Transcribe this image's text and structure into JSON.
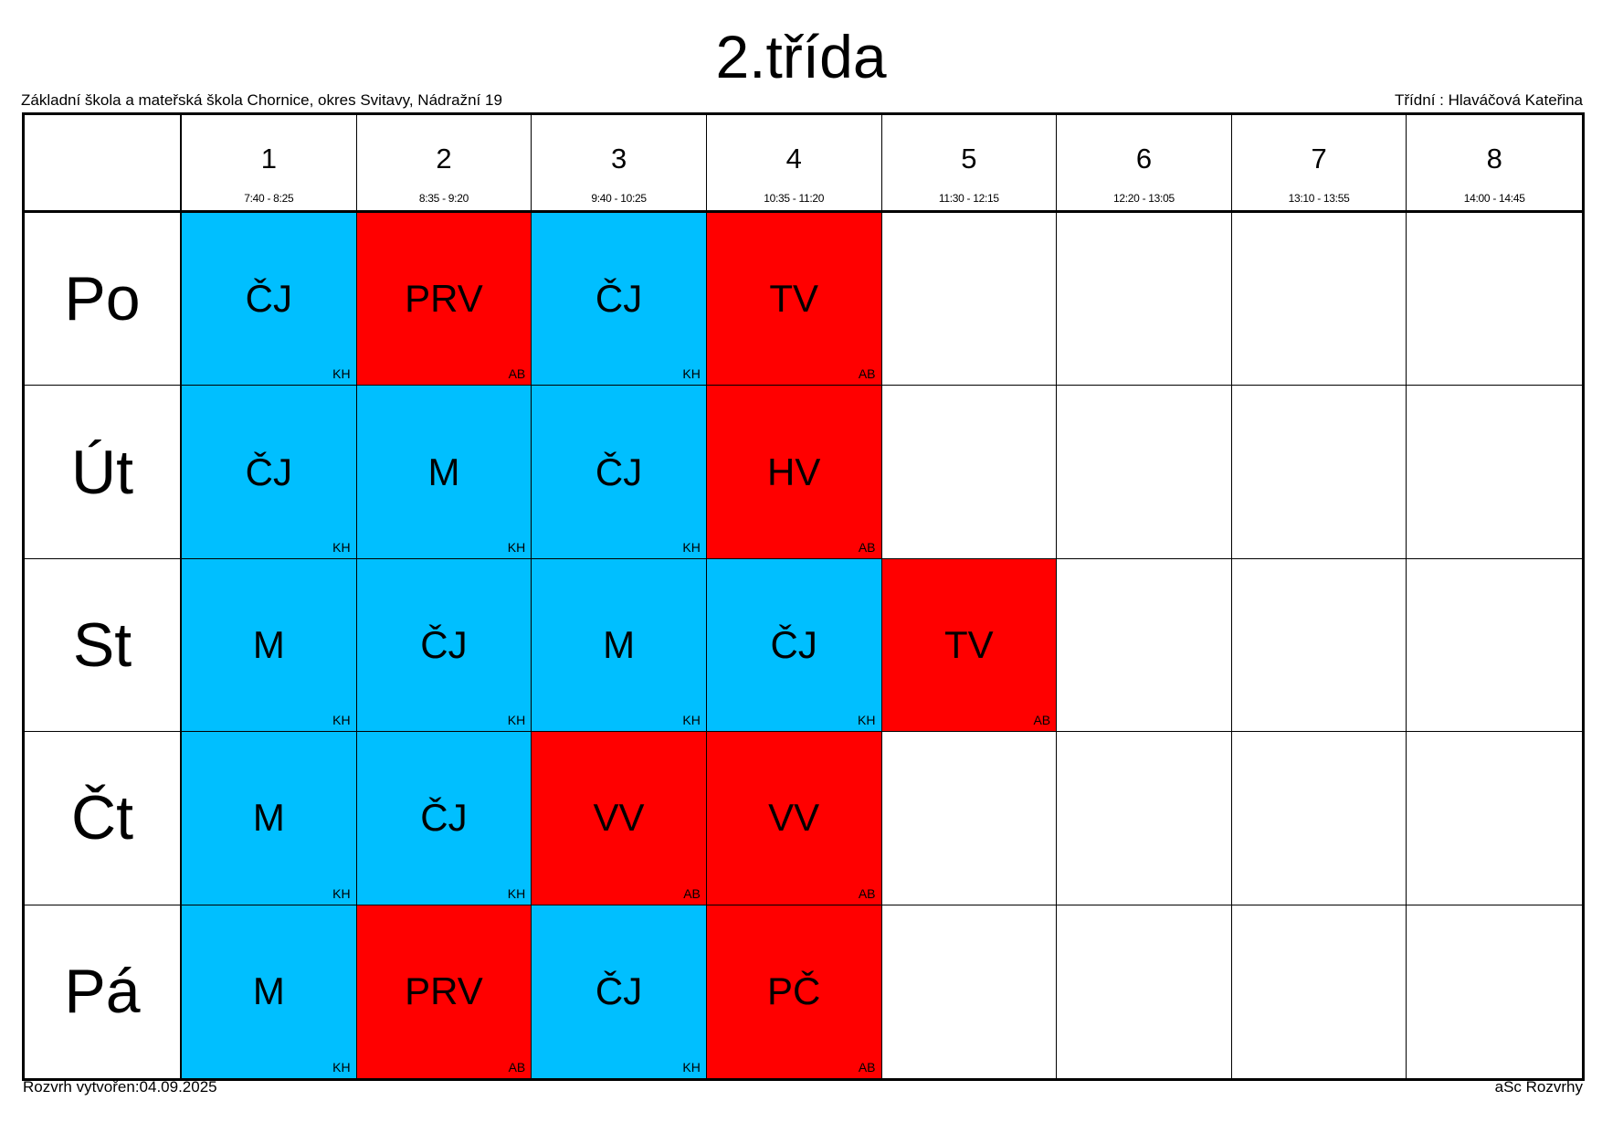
{
  "title": "2.třída",
  "school": "Základní škola a mateřská škola Chornice, okres Svitavy, Nádražní 19",
  "class_teacher": "Třídní : Hlaváčová Kateřina",
  "footer_left": "Rozvrh vytvořen:04.09.2025",
  "footer_right": "aSc Rozvrhy",
  "colors": {
    "blue": "#00bfff",
    "red": "#ff0000"
  },
  "periods": [
    {
      "num": "1",
      "time": "7:40 - 8:25"
    },
    {
      "num": "2",
      "time": "8:35 - 9:20"
    },
    {
      "num": "3",
      "time": "9:40 - 10:25"
    },
    {
      "num": "4",
      "time": "10:35 - 11:20"
    },
    {
      "num": "5",
      "time": "11:30 - 12:15"
    },
    {
      "num": "6",
      "time": "12:20 - 13:05"
    },
    {
      "num": "7",
      "time": "13:10 - 13:55"
    },
    {
      "num": "8",
      "time": "14:00 - 14:45"
    }
  ],
  "days": [
    {
      "label": "Po",
      "lessons": [
        {
          "subject": "ČJ",
          "teacher": "KH",
          "color": "blue"
        },
        {
          "subject": "PRV",
          "teacher": "AB",
          "color": "red"
        },
        {
          "subject": "ČJ",
          "teacher": "KH",
          "color": "blue"
        },
        {
          "subject": "TV",
          "teacher": "AB",
          "color": "red"
        }
      ]
    },
    {
      "label": "Út",
      "lessons": [
        {
          "subject": "ČJ",
          "teacher": "KH",
          "color": "blue"
        },
        {
          "subject": "M",
          "teacher": "KH",
          "color": "blue"
        },
        {
          "subject": "ČJ",
          "teacher": "KH",
          "color": "blue"
        },
        {
          "subject": "HV",
          "teacher": "AB",
          "color": "red"
        }
      ]
    },
    {
      "label": "St",
      "lessons": [
        {
          "subject": "M",
          "teacher": "KH",
          "color": "blue"
        },
        {
          "subject": "ČJ",
          "teacher": "KH",
          "color": "blue"
        },
        {
          "subject": "M",
          "teacher": "KH",
          "color": "blue"
        },
        {
          "subject": "ČJ",
          "teacher": "KH",
          "color": "blue"
        },
        {
          "subject": "TV",
          "teacher": "AB",
          "color": "red"
        }
      ]
    },
    {
      "label": "Čt",
      "lessons": [
        {
          "subject": "M",
          "teacher": "KH",
          "color": "blue"
        },
        {
          "subject": "ČJ",
          "teacher": "KH",
          "color": "blue"
        },
        {
          "subject": "VV",
          "teacher": "AB",
          "color": "red"
        },
        {
          "subject": "VV",
          "teacher": "AB",
          "color": "red"
        }
      ]
    },
    {
      "label": "Pá",
      "lessons": [
        {
          "subject": "M",
          "teacher": "KH",
          "color": "blue"
        },
        {
          "subject": "PRV",
          "teacher": "AB",
          "color": "red"
        },
        {
          "subject": "ČJ",
          "teacher": "KH",
          "color": "blue"
        },
        {
          "subject": "PČ",
          "teacher": "AB",
          "color": "red"
        }
      ]
    }
  ]
}
